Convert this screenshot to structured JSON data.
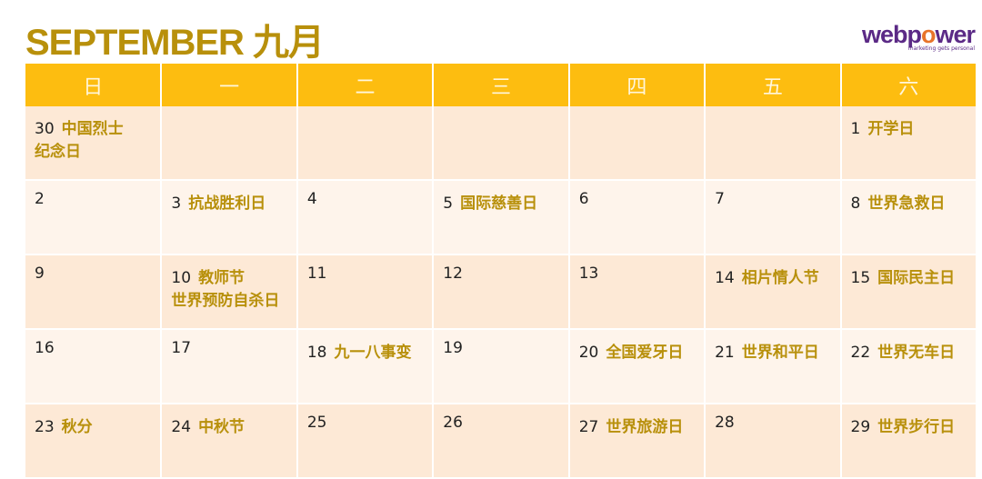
{
  "title": "SEPTEMBER 九月",
  "logo": {
    "name": "webpower",
    "tagline": "marketing gets personal",
    "colors": {
      "brand": "#5b2a86",
      "accent": "#e8742a"
    }
  },
  "colors": {
    "header": "#fdbd10",
    "event_text": "#b8900b",
    "row_a": "#fde9d6",
    "row_b": "#fef4eb"
  },
  "weekdays": [
    "日",
    "一",
    "二",
    "三",
    "四",
    "五",
    "六"
  ],
  "weeks": [
    [
      {
        "day": "30",
        "event": "中国烈士\n纪念日"
      },
      {
        "day": "",
        "event": ""
      },
      {
        "day": "",
        "event": ""
      },
      {
        "day": "",
        "event": ""
      },
      {
        "day": "",
        "event": ""
      },
      {
        "day": "",
        "event": ""
      },
      {
        "day": "1",
        "event": "开学日"
      }
    ],
    [
      {
        "day": "2",
        "event": ""
      },
      {
        "day": "3",
        "event": "抗战胜利日"
      },
      {
        "day": "4",
        "event": ""
      },
      {
        "day": "5",
        "event": "国际慈善日"
      },
      {
        "day": "6",
        "event": ""
      },
      {
        "day": "7",
        "event": ""
      },
      {
        "day": "8",
        "event": "世界急救日"
      }
    ],
    [
      {
        "day": "9",
        "event": ""
      },
      {
        "day": "10",
        "event": "教师节\n世界预防自杀日"
      },
      {
        "day": "11",
        "event": ""
      },
      {
        "day": "12",
        "event": ""
      },
      {
        "day": "13",
        "event": ""
      },
      {
        "day": "14",
        "event": "相片情人节"
      },
      {
        "day": "15",
        "event": "国际民主日"
      }
    ],
    [
      {
        "day": "16",
        "event": ""
      },
      {
        "day": "17",
        "event": ""
      },
      {
        "day": "18",
        "event": "九一八事变"
      },
      {
        "day": "19",
        "event": ""
      },
      {
        "day": "20",
        "event": "全国爱牙日"
      },
      {
        "day": "21",
        "event": "世界和平日"
      },
      {
        "day": "22",
        "event": "世界无车日"
      }
    ],
    [
      {
        "day": "23",
        "event": "秋分"
      },
      {
        "day": "24",
        "event": "中秋节"
      },
      {
        "day": "25",
        "event": ""
      },
      {
        "day": "26",
        "event": ""
      },
      {
        "day": "27",
        "event": "世界旅游日"
      },
      {
        "day": "28",
        "event": ""
      },
      {
        "day": "29",
        "event": "世界步行日"
      }
    ]
  ]
}
